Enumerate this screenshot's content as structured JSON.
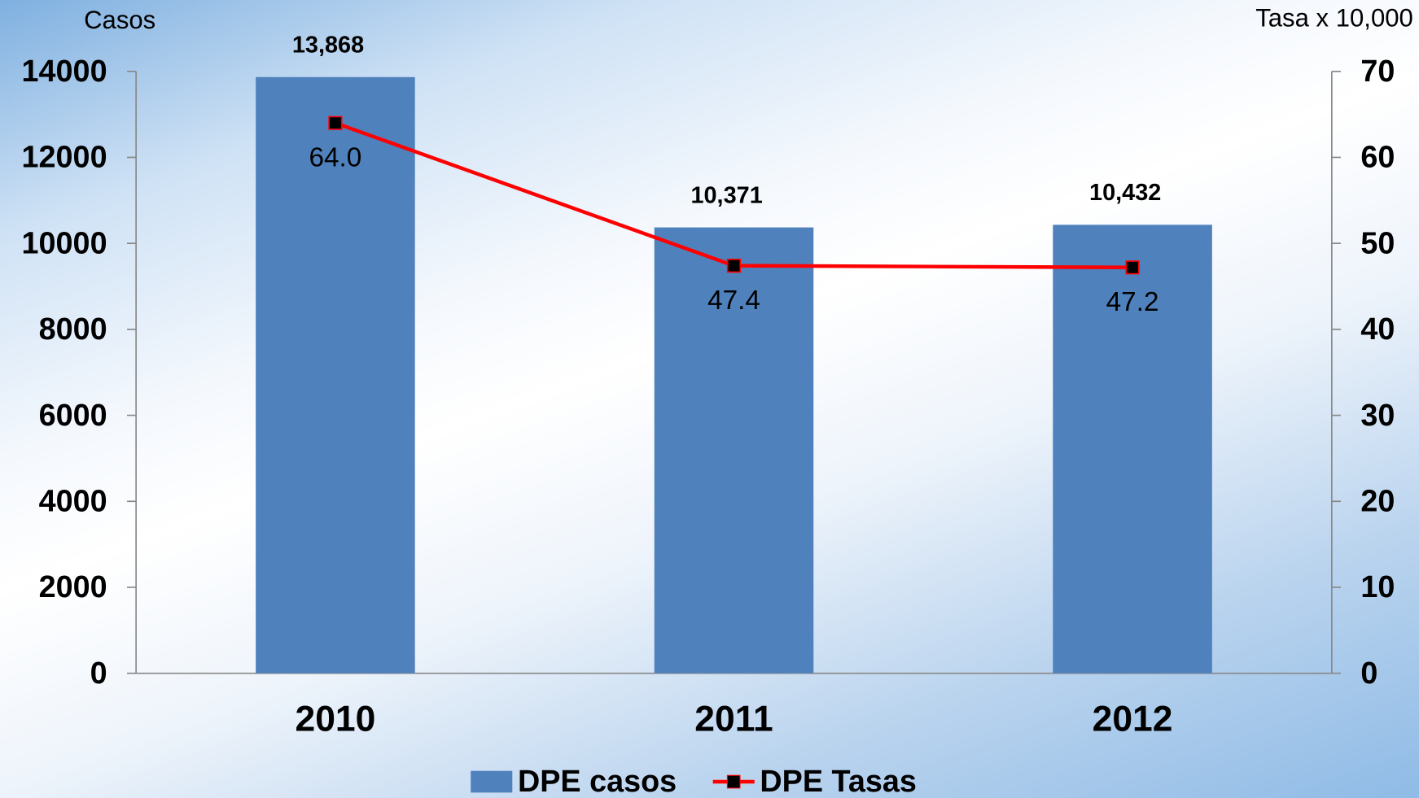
{
  "chart_data": {
    "type": "bar",
    "y_label": "Casos",
    "y2_label": "Tasa x 10,000",
    "categories": [
      "2010",
      "2011",
      "2012"
    ],
    "series": [
      {
        "name": "DPE casos",
        "color": "#4f81bd",
        "values": [
          13868,
          10371,
          10432
        ],
        "value_labels": [
          "13,868",
          "10,371",
          "10,432"
        ]
      },
      {
        "name": "DPE Tasas",
        "type": "line",
        "axis": "y2",
        "color": "#ff0000",
        "values": [
          64.0,
          47.4,
          47.2
        ],
        "value_labels": [
          "64.0",
          "47.4",
          "47.2"
        ]
      }
    ],
    "ylim": [
      0,
      14000
    ],
    "yticks": [
      0,
      2000,
      4000,
      6000,
      8000,
      10000,
      12000,
      14000
    ],
    "y2lim": [
      0,
      70
    ],
    "y2ticks": [
      0,
      10,
      20,
      30,
      40,
      50,
      60,
      70
    ],
    "grid": false,
    "legend": "bottom"
  }
}
